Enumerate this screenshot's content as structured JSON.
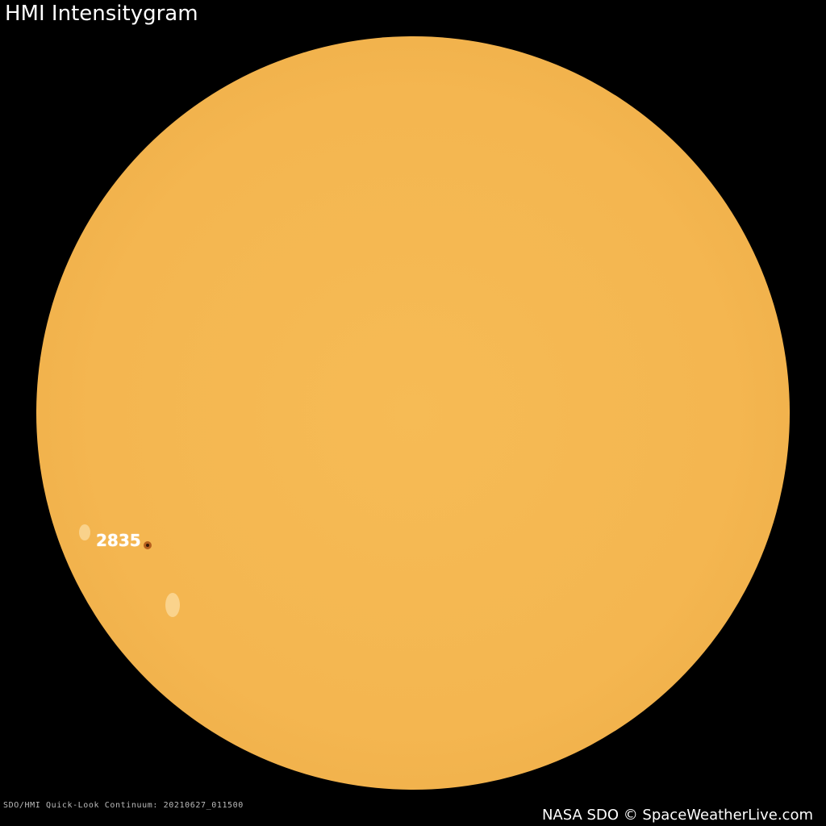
{
  "title": "HMI Intensitygram",
  "caption": "SDO/HMI Quick-Look Continuum: 20210627_011500",
  "credit": "NASA SDO © SpaceWeatherLive.com",
  "active_regions": [
    {
      "label": "2835"
    }
  ],
  "colors": {
    "background": "#000000",
    "sun": "#f4b650",
    "sunspot": "#b5601e"
  }
}
